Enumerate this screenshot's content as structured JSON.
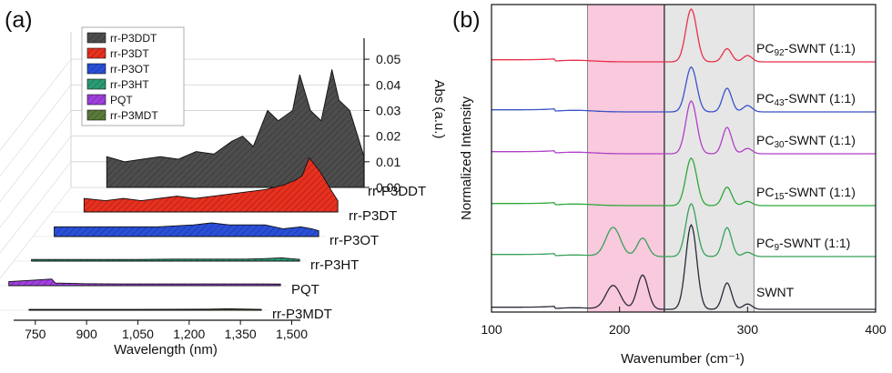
{
  "panel_labels": {
    "a": "(a)",
    "b": "(b)"
  },
  "chart_data": [
    {
      "type": "area",
      "style": "3d-waterfall",
      "xlabel": "Wavelength (nm)",
      "zlabel": "Abs (a.u.)",
      "x_ticks": [
        "750",
        "900",
        "1,050",
        "1,200",
        "1,350",
        "1,500"
      ],
      "xlim": [
        700,
        1520
      ],
      "z_ticks": [
        "0.00",
        "0.01",
        "0.02",
        "0.03",
        "0.04",
        "0.05"
      ],
      "zlim": [
        0,
        0.055
      ],
      "legend_position": "top-left",
      "series": [
        {
          "name": "rr-P3DDT",
          "color": "#4d4d4d",
          "x": [
            800,
            850,
            900,
            950,
            1000,
            1050,
            1100,
            1150,
            1180,
            1210,
            1250,
            1280,
            1320,
            1340,
            1370,
            1400,
            1430,
            1450,
            1480,
            1520
          ],
          "y": [
            0.012,
            0.01,
            0.011,
            0.012,
            0.011,
            0.014,
            0.013,
            0.018,
            0.02,
            0.016,
            0.03,
            0.026,
            0.03,
            0.044,
            0.03,
            0.026,
            0.046,
            0.034,
            0.03,
            0.012
          ]
        },
        {
          "name": "rr-P3DT",
          "color": "#e8301f",
          "x": [
            790,
            850,
            900,
            950,
            1000,
            1050,
            1100,
            1150,
            1200,
            1250,
            1300,
            1350,
            1380,
            1400,
            1420,
            1450,
            1480,
            1500
          ],
          "y": [
            0.006,
            0.005,
            0.006,
            0.005,
            0.006,
            0.007,
            0.006,
            0.007,
            0.008,
            0.009,
            0.01,
            0.012,
            0.014,
            0.016,
            0.024,
            0.018,
            0.01,
            0.005
          ]
        },
        {
          "name": "rr-P3OT",
          "color": "#2a4fd8",
          "x": [
            760,
            850,
            950,
            1050,
            1150,
            1200,
            1250,
            1300,
            1350,
            1400,
            1450,
            1480,
            1500
          ],
          "y": [
            0.005,
            0.005,
            0.005,
            0.005,
            0.006,
            0.007,
            0.006,
            0.006,
            0.006,
            0.004,
            0.005,
            0.004,
            0.003
          ]
        },
        {
          "name": "rr-P3HT",
          "color": "#2b9b73",
          "x": [
            750,
            850,
            950,
            1050,
            1150,
            1250,
            1350,
            1400,
            1450,
            1500
          ],
          "y": [
            0.001,
            0.001,
            0.001,
            0.001,
            0.0012,
            0.0012,
            0.0012,
            0.0015,
            0.002,
            0.001
          ]
        },
        {
          "name": "PQT",
          "color": "#a040e0",
          "x": [
            740,
            800,
            860,
            870,
            950,
            1050,
            1150,
            1250,
            1350,
            1450,
            1500
          ],
          "y": [
            0.003,
            0.004,
            0.005,
            0.002,
            0.0015,
            0.0013,
            0.0013,
            0.0013,
            0.0013,
            0.0013,
            0.0012
          ]
        },
        {
          "name": "rr-P3MDT",
          "color": "#5a7a3a",
          "x": [
            850,
            950,
            1050,
            1150,
            1250,
            1350,
            1400,
            1450,
            1500
          ],
          "y": [
            0.0008,
            0.0008,
            0.0008,
            0.0008,
            0.0009,
            0.001,
            0.0014,
            0.0012,
            0.0008
          ]
        }
      ]
    },
    {
      "type": "line",
      "xlabel": "Wavenumber (cm⁻¹)",
      "ylabel": "Normalized Intensity",
      "x_ticks": [
        "100",
        "200",
        "300",
        "400"
      ],
      "xlim": [
        100,
        400
      ],
      "highlight_regions": [
        {
          "x0": 175,
          "x1": 235,
          "color": "#f9c9dd"
        },
        {
          "x0": 235,
          "x1": 305,
          "color": "#e6e6e6"
        }
      ],
      "series": [
        {
          "name": "PC92-SWNT (1:1)",
          "color": "#e8314a",
          "baseline": 68,
          "peak_heights": {
            "195": 0.0,
            "218": 0.0,
            "256": 1.0,
            "284": 0.25,
            "300": 0.12
          }
        },
        {
          "name": "PC43-SWNT (1:1)",
          "color": "#3a52c8",
          "baseline": 123,
          "peak_heights": {
            "195": 0.0,
            "218": 0.0,
            "256": 0.85,
            "284": 0.45,
            "300": 0.12
          }
        },
        {
          "name": "PC30-SWNT (1:1)",
          "color": "#b040c8",
          "baseline": 169,
          "peak_heights": {
            "195": 0.0,
            "218": 0.0,
            "256": 1.0,
            "284": 0.5,
            "300": 0.1
          }
        },
        {
          "name": "PC15-SWNT (1:1)",
          "color": "#2da83a",
          "baseline": 226,
          "peak_heights": {
            "195": 0.0,
            "218": 0.0,
            "256": 0.9,
            "284": 0.35,
            "300": 0.08
          }
        },
        {
          "name": "PC9-SWNT (1:1)",
          "color": "#3aa05a",
          "baseline": 282,
          "peak_heights": {
            "195": 0.55,
            "218": 0.35,
            "256": 1.0,
            "284": 0.55,
            "300": 0.08
          }
        },
        {
          "name": "SWNT",
          "color": "#2a2a3a",
          "baseline": 340,
          "peak_heights": {
            "195": 0.45,
            "218": 0.65,
            "256": 1.6,
            "284": 0.5,
            "300": 0.1
          }
        }
      ],
      "series_labels": [
        {
          "prefix": "PC",
          "sub": "92",
          "suffix": "-SWNT (1:1)"
        },
        {
          "prefix": "PC",
          "sub": "43",
          "suffix": "-SWNT (1:1)"
        },
        {
          "prefix": "PC",
          "sub": "30",
          "suffix": "-SWNT (1:1)"
        },
        {
          "prefix": "PC",
          "sub": "15",
          "suffix": "-SWNT (1:1)"
        },
        {
          "prefix": "PC",
          "sub": "9",
          "suffix": "-SWNT (1:1)"
        },
        {
          "prefix": "",
          "sub": "",
          "suffix": "SWNT"
        }
      ]
    }
  ]
}
